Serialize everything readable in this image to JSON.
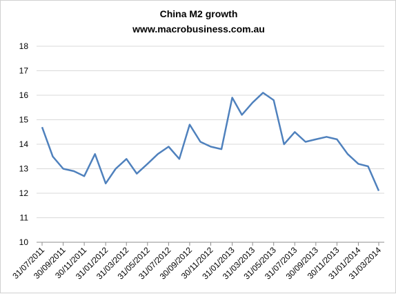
{
  "chart_data": {
    "type": "line",
    "title": "China M2 growth",
    "subtitle": "www.macrobusiness.com.au",
    "xlabel": "",
    "ylabel": "",
    "ylim": [
      10,
      18
    ],
    "yticks": [
      10,
      11,
      12,
      13,
      14,
      15,
      16,
      17,
      18
    ],
    "grid": true,
    "legend": "none",
    "colors": {
      "series": "#4F81BD",
      "grid": "#D9D9D9",
      "axis": "#8C8C8C"
    },
    "xtick_labels": [
      "31/07/2011",
      "30/09/2011",
      "30/11/2011",
      "31/01/2012",
      "31/03/2012",
      "31/05/2012",
      "31/07/2012",
      "30/09/2012",
      "30/11/2012",
      "31/01/2013",
      "31/03/2013",
      "31/05/2013",
      "31/07/2013",
      "30/09/2013",
      "30/11/2013",
      "31/01/2014",
      "31/03/2014"
    ],
    "x": [
      "31/07/2011",
      "31/08/2011",
      "30/09/2011",
      "31/10/2011",
      "30/11/2011",
      "31/12/2011",
      "31/01/2012",
      "29/02/2012",
      "31/03/2012",
      "30/04/2012",
      "31/05/2012",
      "30/06/2012",
      "31/07/2012",
      "31/08/2012",
      "30/09/2012",
      "31/10/2012",
      "30/11/2012",
      "31/12/2012",
      "31/01/2013",
      "28/02/2013",
      "31/03/2013",
      "30/04/2013",
      "31/05/2013",
      "30/06/2013",
      "31/07/2013",
      "31/08/2013",
      "30/09/2013",
      "31/10/2013",
      "30/11/2013",
      "31/12/2013",
      "31/01/2014",
      "28/02/2014",
      "31/03/2014"
    ],
    "series": [
      {
        "values": [
          14.7,
          13.5,
          13.0,
          12.9,
          12.7,
          13.6,
          12.4,
          13.0,
          13.4,
          12.8,
          13.2,
          13.6,
          13.9,
          13.4,
          14.8,
          14.1,
          13.9,
          13.8,
          15.9,
          15.2,
          15.7,
          16.1,
          15.8,
          14.0,
          14.5,
          14.1,
          14.2,
          14.3,
          14.2,
          13.6,
          13.2,
          13.1,
          12.1
        ]
      }
    ]
  }
}
